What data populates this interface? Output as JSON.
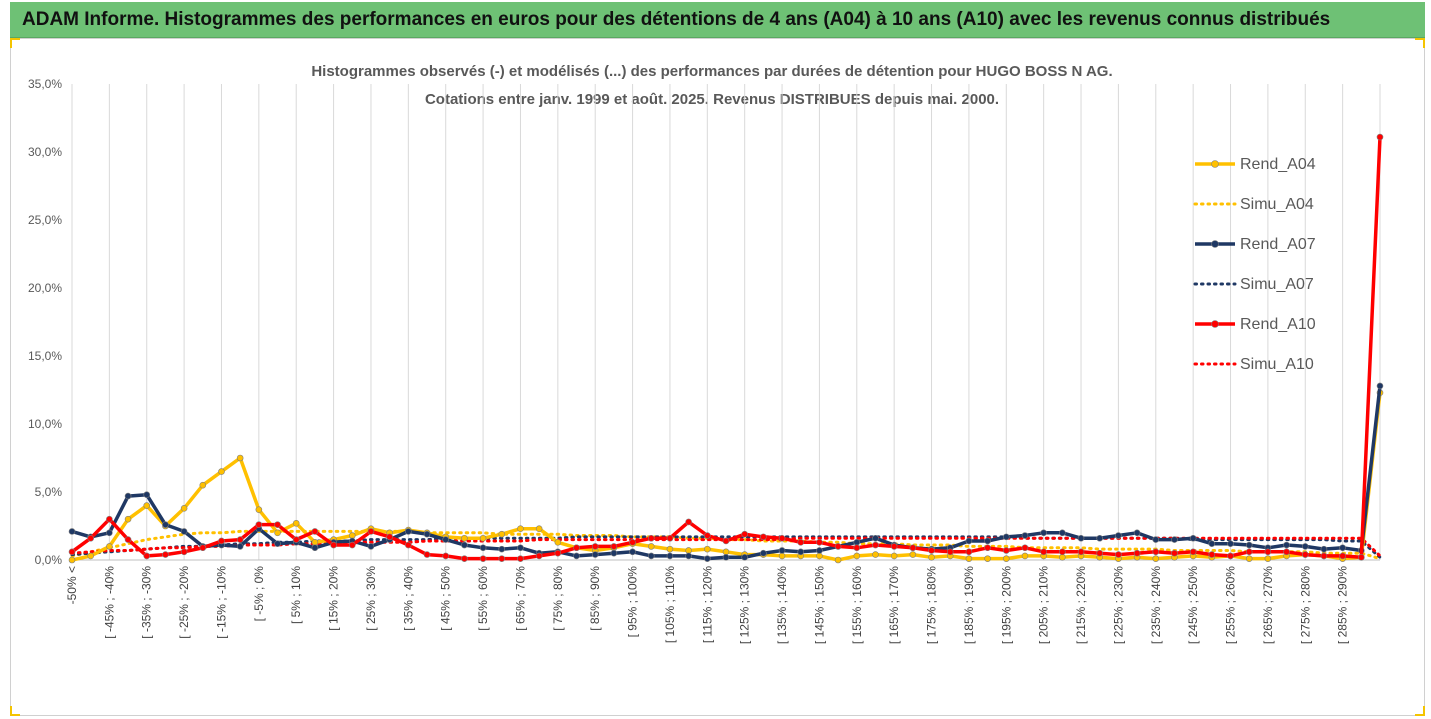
{
  "header": {
    "title": "ADAM Informe. Histogrammes des performances en euros pour des détentions de 4 ans (A04) à 10 ans (A10) avec les revenus connus distribués",
    "background": "#6ec175"
  },
  "chart_data": {
    "type": "line",
    "title": "Histogrammes observés (-) et modélisés (...) des performances par durées de détention pour HUGO BOSS N AG.",
    "subtitle": "Cotations entre janv. 1999 et août. 2025. Revenus DISTRIBUES depuis mai. 2000.",
    "xlabel": "",
    "ylabel": "",
    "ylim": [
      0,
      35
    ],
    "yticks": [
      "0,0%",
      "5,0%",
      "10,0%",
      "15,0%",
      "20,0%",
      "25,0%",
      "30,0%",
      "35,0%"
    ],
    "grid": "vertical",
    "legend_position": "right",
    "xtick_labels": [
      "-50% <",
      "[ -45% ; -40%",
      "[ -35% ; -30%",
      "[ -25% ; -20%",
      "[ -15% ; -10%",
      "[ -5% ; 0%",
      "[ 5% ; 10%",
      "[ 15% ; 20%",
      "[ 25% ; 30%",
      "[ 35% ; 40%",
      "[ 45% ; 50%",
      "[ 55% ; 60%",
      "[ 65% ; 70%",
      "[ 75% ; 80%",
      "[ 85% ; 90%",
      "[ 95% ; 100%",
      "[ 105% ; 110%",
      "[ 115% ; 120%",
      "[ 125% ; 130%",
      "[ 135% ; 140%",
      "[ 145% ; 150%",
      "[ 155% ; 160%",
      "[ 165% ; 170%",
      "[ 175% ; 180%",
      "[ 185% ; 190%",
      "[ 195% ; 200%",
      "[ 205% ; 210%",
      "[ 215% ; 220%",
      "[ 225% ; 230%",
      "[ 235% ; 240%",
      "[ 245% ; 250%",
      "[ 255% ; 260%",
      "[ 265% ; 270%",
      "[ 275% ; 280%",
      "[ 285% ; 290%"
    ],
    "series": [
      {
        "name": "Rend_A04",
        "color": "#ffc000",
        "style": "solid",
        "values": [
          0.0,
          0.3,
          1.0,
          3.0,
          4.0,
          2.5,
          3.8,
          5.5,
          6.5,
          7.5,
          3.7,
          2.0,
          2.7,
          1.3,
          1.5,
          1.8,
          2.3,
          2.0,
          2.2,
          2.0,
          1.7,
          1.6,
          1.6,
          1.9,
          2.3,
          2.3,
          1.3,
          0.9,
          0.7,
          0.9,
          1.2,
          1.0,
          0.8,
          0.7,
          0.8,
          0.6,
          0.4,
          0.4,
          0.3,
          0.3,
          0.3,
          0.0,
          0.3,
          0.4,
          0.3,
          0.4,
          0.2,
          0.3,
          0.1,
          0.1,
          0.1,
          0.3,
          0.3,
          0.2,
          0.3,
          0.2,
          0.1,
          0.2,
          0.1,
          0.2,
          0.3,
          0.2,
          0.3,
          0.1,
          0.1,
          0.3,
          0.4,
          0.3,
          0.1,
          0.2,
          12.3
        ]
      },
      {
        "name": "Simu_A04",
        "color": "#ffc000",
        "style": "dotted",
        "values": [
          0.3,
          0.6,
          0.9,
          1.2,
          1.5,
          1.7,
          1.9,
          2.0,
          2.0,
          2.1,
          2.1,
          2.1,
          2.1,
          2.1,
          2.1,
          2.1,
          2.1,
          2.1,
          2.1,
          2.0,
          2.0,
          2.0,
          2.0,
          1.9,
          1.9,
          1.9,
          1.9,
          1.8,
          1.8,
          1.8,
          1.7,
          1.7,
          1.7,
          1.6,
          1.6,
          1.5,
          1.5,
          1.4,
          1.4,
          1.4,
          1.3,
          1.3,
          1.2,
          1.2,
          1.2,
          1.1,
          1.1,
          1.1,
          1.0,
          1.0,
          1.0,
          0.9,
          0.9,
          0.9,
          0.9,
          0.8,
          0.8,
          0.8,
          0.8,
          0.7,
          0.7,
          0.7,
          0.7,
          0.6,
          0.6,
          0.6,
          0.6,
          0.5,
          0.5,
          0.5,
          0.1
        ]
      },
      {
        "name": "Rend_A07",
        "color": "#1f3864",
        "style": "solid",
        "values": [
          2.1,
          1.7,
          2.0,
          4.7,
          4.8,
          2.6,
          2.1,
          1.0,
          1.1,
          1.0,
          2.3,
          1.2,
          1.3,
          0.9,
          1.3,
          1.4,
          1.0,
          1.5,
          2.1,
          1.9,
          1.5,
          1.1,
          0.9,
          0.8,
          0.9,
          0.5,
          0.6,
          0.3,
          0.4,
          0.5,
          0.6,
          0.3,
          0.3,
          0.3,
          0.1,
          0.2,
          0.2,
          0.5,
          0.7,
          0.6,
          0.7,
          1.0,
          1.3,
          1.6,
          1.1,
          0.9,
          0.8,
          0.9,
          1.4,
          1.4,
          1.7,
          1.8,
          2.0,
          2.0,
          1.6,
          1.6,
          1.8,
          2.0,
          1.5,
          1.5,
          1.6,
          1.2,
          1.2,
          1.1,
          0.9,
          1.1,
          1.0,
          0.8,
          0.9,
          0.7,
          12.8
        ]
      },
      {
        "name": "Simu_A07",
        "color": "#1f3864",
        "style": "dotted",
        "values": [
          0.4,
          0.5,
          0.6,
          0.7,
          0.8,
          0.9,
          1.0,
          1.0,
          1.1,
          1.2,
          1.2,
          1.3,
          1.3,
          1.4,
          1.4,
          1.4,
          1.5,
          1.5,
          1.5,
          1.5,
          1.6,
          1.6,
          1.6,
          1.6,
          1.6,
          1.6,
          1.6,
          1.7,
          1.7,
          1.7,
          1.7,
          1.7,
          1.7,
          1.7,
          1.7,
          1.7,
          1.7,
          1.7,
          1.7,
          1.7,
          1.7,
          1.7,
          1.7,
          1.7,
          1.7,
          1.7,
          1.7,
          1.7,
          1.7,
          1.7,
          1.7,
          1.6,
          1.6,
          1.6,
          1.6,
          1.6,
          1.6,
          1.6,
          1.6,
          1.6,
          1.5,
          1.5,
          1.5,
          1.5,
          1.5,
          1.5,
          1.5,
          1.5,
          1.4,
          1.4,
          0.2
        ]
      },
      {
        "name": "Rend_A10",
        "color": "#ff0000",
        "style": "solid",
        "values": [
          0.6,
          1.6,
          3.0,
          1.5,
          0.3,
          0.4,
          0.6,
          0.9,
          1.4,
          1.5,
          2.6,
          2.6,
          1.5,
          2.1,
          1.1,
          1.1,
          2.1,
          1.7,
          1.1,
          0.4,
          0.3,
          0.1,
          0.1,
          0.1,
          0.1,
          0.3,
          0.5,
          0.9,
          1.0,
          1.0,
          1.3,
          1.6,
          1.6,
          2.8,
          1.8,
          1.4,
          1.9,
          1.7,
          1.6,
          1.3,
          1.3,
          1.0,
          0.9,
          1.1,
          1.0,
          0.9,
          0.7,
          0.6,
          0.6,
          0.9,
          0.7,
          0.9,
          0.6,
          0.6,
          0.6,
          0.5,
          0.4,
          0.5,
          0.6,
          0.5,
          0.6,
          0.4,
          0.3,
          0.6,
          0.6,
          0.6,
          0.4,
          0.3,
          0.3,
          0.2,
          31.1
        ]
      },
      {
        "name": "Simu_A10",
        "color": "#ff0000",
        "style": "dotted",
        "values": [
          0.5,
          0.6,
          0.7,
          0.7,
          0.8,
          0.9,
          0.9,
          1.0,
          1.0,
          1.1,
          1.1,
          1.1,
          1.2,
          1.2,
          1.2,
          1.3,
          1.3,
          1.3,
          1.3,
          1.4,
          1.4,
          1.4,
          1.4,
          1.4,
          1.4,
          1.5,
          1.5,
          1.5,
          1.5,
          1.5,
          1.5,
          1.5,
          1.5,
          1.5,
          1.5,
          1.5,
          1.5,
          1.5,
          1.5,
          1.6,
          1.6,
          1.6,
          1.6,
          1.6,
          1.6,
          1.6,
          1.6,
          1.6,
          1.6,
          1.6,
          1.6,
          1.6,
          1.6,
          1.6,
          1.6,
          1.6,
          1.6,
          1.6,
          1.6,
          1.6,
          1.6,
          1.6,
          1.6,
          1.6,
          1.6,
          1.6,
          1.6,
          1.6,
          1.6,
          1.6,
          0.3
        ]
      }
    ]
  }
}
